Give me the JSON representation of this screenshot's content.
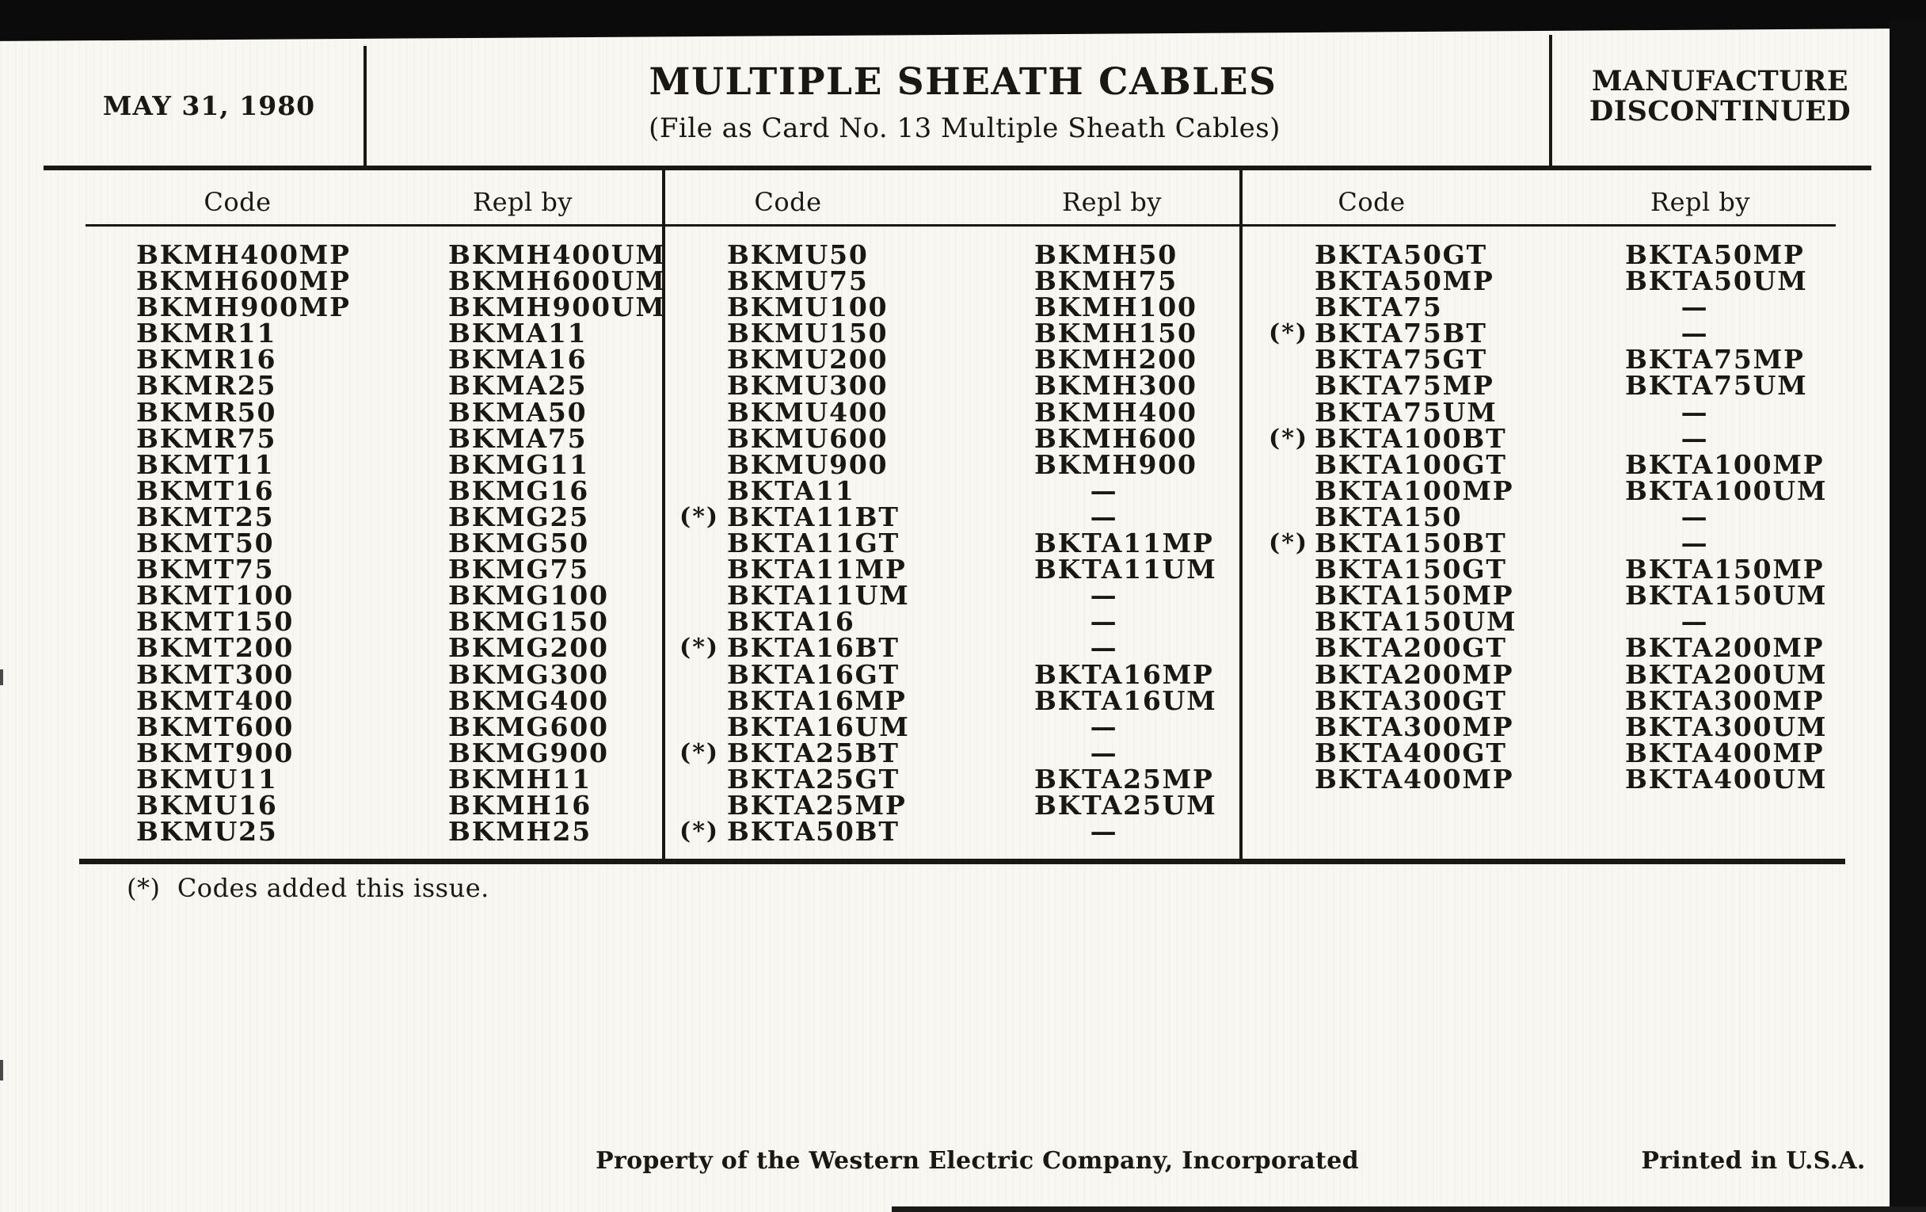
{
  "header": {
    "date": "MAY 31, 1980",
    "title": "MULTIPLE SHEATH CABLES",
    "subtitle": "(File as Card No. 13 Multiple Sheath Cables)",
    "status_line1": "MANUFACTURE",
    "status_line2": "DISCONTINUED"
  },
  "columns": {
    "code_label": "Code",
    "repl_label": "Repl by"
  },
  "table": {
    "star_prefix": "(*)",
    "dash": "—",
    "groups": [
      {
        "rows": [
          {
            "c": "BKMH400MP",
            "r": "BKMH400UM",
            "s": false
          },
          {
            "c": "BKMH600MP",
            "r": "BKMH600UM",
            "s": false
          },
          {
            "c": "BKMH900MP",
            "r": "BKMH900UM",
            "s": false
          },
          {
            "c": "BKMR11",
            "r": "BKMA11",
            "s": false
          },
          {
            "c": "BKMR16",
            "r": "BKMA16",
            "s": false
          },
          {
            "c": "BKMR25",
            "r": "BKMA25",
            "s": false
          },
          {
            "c": "BKMR50",
            "r": "BKMA50",
            "s": false
          },
          {
            "c": "BKMR75",
            "r": "BKMA75",
            "s": false
          },
          {
            "c": "BKMT11",
            "r": "BKMG11",
            "s": false
          },
          {
            "c": "BKMT16",
            "r": "BKMG16",
            "s": false
          },
          {
            "c": "BKMT25",
            "r": "BKMG25",
            "s": false
          },
          {
            "c": "BKMT50",
            "r": "BKMG50",
            "s": false
          },
          {
            "c": "BKMT75",
            "r": "BKMG75",
            "s": false
          },
          {
            "c": "BKMT100",
            "r": "BKMG100",
            "s": false
          },
          {
            "c": "BKMT150",
            "r": "BKMG150",
            "s": false
          },
          {
            "c": "BKMT200",
            "r": "BKMG200",
            "s": false
          },
          {
            "c": "BKMT300",
            "r": "BKMG300",
            "s": false
          },
          {
            "c": "BKMT400",
            "r": "BKMG400",
            "s": false
          },
          {
            "c": "BKMT600",
            "r": "BKMG600",
            "s": false
          },
          {
            "c": "BKMT900",
            "r": "BKMG900",
            "s": false
          },
          {
            "c": "BKMU11",
            "r": "BKMH11",
            "s": false
          },
          {
            "c": "BKMU16",
            "r": "BKMH16",
            "s": false
          },
          {
            "c": "BKMU25",
            "r": "BKMH25",
            "s": false
          }
        ]
      },
      {
        "rows": [
          {
            "c": "BKMU50",
            "r": "BKMH50",
            "s": false
          },
          {
            "c": "BKMU75",
            "r": "BKMH75",
            "s": false
          },
          {
            "c": "BKMU100",
            "r": "BKMH100",
            "s": false
          },
          {
            "c": "BKMU150",
            "r": "BKMH150",
            "s": false
          },
          {
            "c": "BKMU200",
            "r": "BKMH200",
            "s": false
          },
          {
            "c": "BKMU300",
            "r": "BKMH300",
            "s": false
          },
          {
            "c": "BKMU400",
            "r": "BKMH400",
            "s": false
          },
          {
            "c": "BKMU600",
            "r": "BKMH600",
            "s": false
          },
          {
            "c": "BKMU900",
            "r": "BKMH900",
            "s": false
          },
          {
            "c": "BKTA11",
            "r": "—",
            "s": false
          },
          {
            "c": "BKTA11BT",
            "r": "—",
            "s": true
          },
          {
            "c": "BKTA11GT",
            "r": "BKTA11MP",
            "s": false
          },
          {
            "c": "BKTA11MP",
            "r": "BKTA11UM",
            "s": false
          },
          {
            "c": "BKTA11UM",
            "r": "—",
            "s": false
          },
          {
            "c": "BKTA16",
            "r": "—",
            "s": false
          },
          {
            "c": "BKTA16BT",
            "r": "—",
            "s": true
          },
          {
            "c": "BKTA16GT",
            "r": "BKTA16MP",
            "s": false
          },
          {
            "c": "BKTA16MP",
            "r": "BKTA16UM",
            "s": false
          },
          {
            "c": "BKTA16UM",
            "r": "—",
            "s": false
          },
          {
            "c": "BKTA25BT",
            "r": "—",
            "s": true
          },
          {
            "c": "BKTA25GT",
            "r": "BKTA25MP",
            "s": false
          },
          {
            "c": "BKTA25MP",
            "r": "BKTA25UM",
            "s": false
          },
          {
            "c": "BKTA50BT",
            "r": "—",
            "s": true
          }
        ]
      },
      {
        "rows": [
          {
            "c": "BKTA50GT",
            "r": "BKTA50MP",
            "s": false
          },
          {
            "c": "BKTA50MP",
            "r": "BKTA50UM",
            "s": false
          },
          {
            "c": "BKTA75",
            "r": "—",
            "s": false
          },
          {
            "c": "BKTA75BT",
            "r": "—",
            "s": true
          },
          {
            "c": "BKTA75GT",
            "r": "BKTA75MP",
            "s": false
          },
          {
            "c": "BKTA75MP",
            "r": "BKTA75UM",
            "s": false
          },
          {
            "c": "BKTA75UM",
            "r": "—",
            "s": false
          },
          {
            "c": "BKTA100BT",
            "r": "—",
            "s": true
          },
          {
            "c": "BKTA100GT",
            "r": "BKTA100MP",
            "s": false
          },
          {
            "c": "BKTA100MP",
            "r": "BKTA100UM",
            "s": false
          },
          {
            "c": "BKTA150",
            "r": "—",
            "s": false
          },
          {
            "c": "BKTA150BT",
            "r": "—",
            "s": true
          },
          {
            "c": "BKTA150GT",
            "r": "BKTA150MP",
            "s": false
          },
          {
            "c": "BKTA150MP",
            "r": "BKTA150UM",
            "s": false
          },
          {
            "c": "BKTA150UM",
            "r": "—",
            "s": false
          },
          {
            "c": "BKTA200GT",
            "r": "BKTA200MP",
            "s": false
          },
          {
            "c": "BKTA200MP",
            "r": "BKTA200UM",
            "s": false
          },
          {
            "c": "BKTA300GT",
            "r": "BKTA300MP",
            "s": false
          },
          {
            "c": "BKTA300MP",
            "r": "BKTA300UM",
            "s": false
          },
          {
            "c": "BKTA400GT",
            "r": "BKTA400MP",
            "s": false
          },
          {
            "c": "BKTA400MP",
            "r": "BKTA400UM",
            "s": false
          }
        ]
      }
    ]
  },
  "footnote": "(*)  Codes added this issue.",
  "footer": {
    "left": "Property of the Western Electric Company, Incorporated",
    "right": "Printed in U.S.A."
  },
  "colors": {
    "ink": "#1b1814",
    "paper": "#f8f7f2",
    "scan_bar": "#0b0b0b"
  }
}
